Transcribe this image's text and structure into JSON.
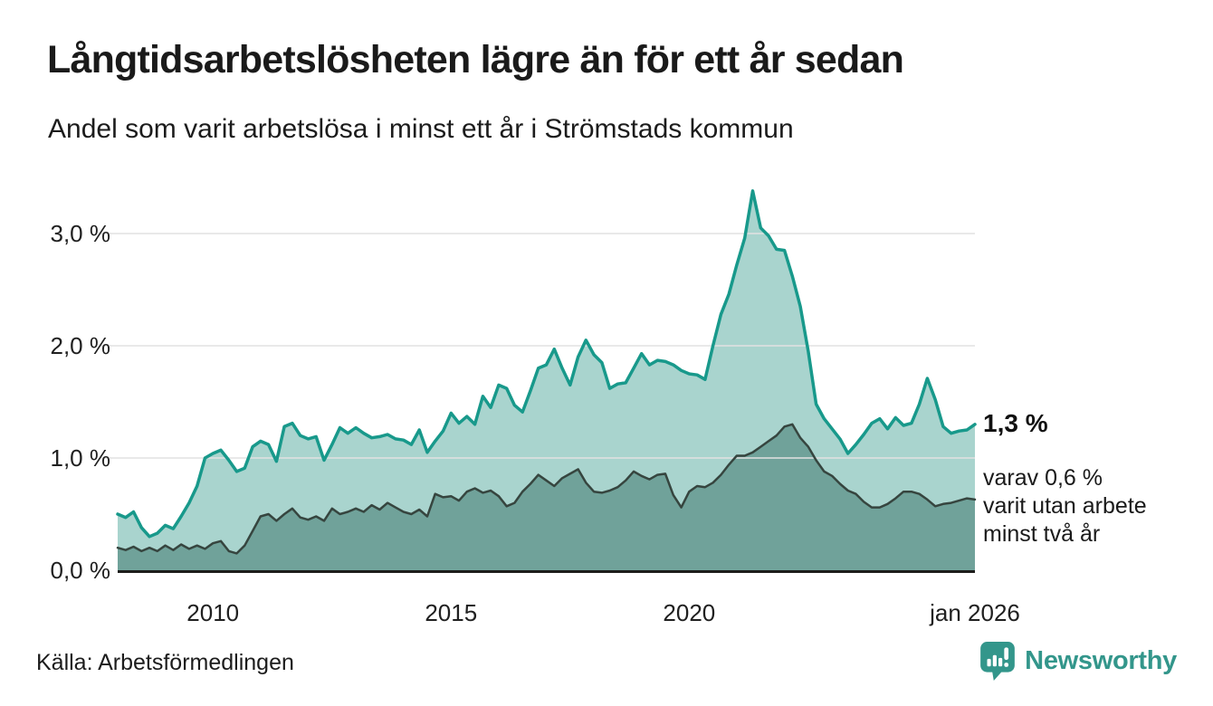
{
  "header": {
    "title": "Långtidsarbetslösheten lägre än för ett år sedan",
    "subtitle": "Andel som varit arbetslösa i minst ett år i Strömstads kommun"
  },
  "chart_data": {
    "type": "area",
    "title": "Långtidsarbetslösheten lägre än för ett år sedan",
    "subtitle": "Andel som varit arbetslösa i minst ett år i Strömstads kommun",
    "unit": "%",
    "x_domain": [
      2008,
      2026
    ],
    "ylim": [
      0,
      3.55
    ],
    "grid": "horizontal",
    "legend": "none",
    "x_ticks": [
      {
        "year": 2010,
        "label": "2010"
      },
      {
        "year": 2015,
        "label": "2015"
      },
      {
        "year": 2020,
        "label": "2020"
      },
      {
        "year": 2026,
        "label": "jan 2026"
      }
    ],
    "y_ticks": [
      {
        "value": 0,
        "label": "0,0 %"
      },
      {
        "value": 1,
        "label": "1,0 %"
      },
      {
        "value": 2,
        "label": "2,0 %"
      },
      {
        "value": 3,
        "label": "3,0 %"
      }
    ],
    "series": [
      {
        "name": "Andel arbetslösa minst ett år",
        "line_color": "#18998b",
        "fill_color": "#a9d4ce",
        "line_width": 3.5,
        "end_value": "1,3 %",
        "values": [
          0.5,
          0.47,
          0.52,
          0.38,
          0.3,
          0.33,
          0.4,
          0.37,
          0.48,
          0.6,
          0.75,
          1.0,
          1.04,
          1.07,
          0.98,
          0.88,
          0.91,
          1.1,
          1.15,
          1.12,
          0.97,
          1.28,
          1.31,
          1.2,
          1.17,
          1.19,
          0.98,
          1.12,
          1.27,
          1.22,
          1.27,
          1.22,
          1.18,
          1.19,
          1.21,
          1.17,
          1.16,
          1.12,
          1.25,
          1.05,
          1.15,
          1.24,
          1.4,
          1.31,
          1.37,
          1.3,
          1.55,
          1.45,
          1.65,
          1.62,
          1.47,
          1.41,
          1.6,
          1.8,
          1.83,
          1.97,
          1.8,
          1.65,
          1.9,
          2.05,
          1.92,
          1.85,
          1.62,
          1.66,
          1.67,
          1.8,
          1.93,
          1.83,
          1.87,
          1.86,
          1.83,
          1.78,
          1.75,
          1.74,
          1.7,
          2.0,
          2.28,
          2.46,
          2.72,
          2.96,
          3.38,
          3.05,
          2.98,
          2.86,
          2.85,
          2.62,
          2.35,
          1.95,
          1.48,
          1.35,
          1.26,
          1.17,
          1.04,
          1.12,
          1.21,
          1.31,
          1.35,
          1.26,
          1.36,
          1.29,
          1.31,
          1.48,
          1.71,
          1.52,
          1.28,
          1.22,
          1.24,
          1.25,
          1.3
        ]
      },
      {
        "name": "Andel arbetslösa minst två år",
        "line_color": "#36453f",
        "fill_color": "#70a29a",
        "line_width": 2.5,
        "end_value": "0,6 %",
        "values": [
          0.2,
          0.18,
          0.21,
          0.17,
          0.2,
          0.17,
          0.22,
          0.18,
          0.23,
          0.19,
          0.22,
          0.19,
          0.24,
          0.26,
          0.17,
          0.15,
          0.22,
          0.35,
          0.48,
          0.5,
          0.44,
          0.5,
          0.55,
          0.47,
          0.45,
          0.48,
          0.44,
          0.55,
          0.5,
          0.52,
          0.55,
          0.52,
          0.58,
          0.54,
          0.6,
          0.56,
          0.52,
          0.5,
          0.54,
          0.48,
          0.68,
          0.65,
          0.66,
          0.62,
          0.7,
          0.73,
          0.69,
          0.71,
          0.66,
          0.57,
          0.6,
          0.7,
          0.77,
          0.85,
          0.8,
          0.75,
          0.82,
          0.86,
          0.9,
          0.78,
          0.7,
          0.69,
          0.71,
          0.74,
          0.8,
          0.88,
          0.84,
          0.81,
          0.85,
          0.86,
          0.67,
          0.56,
          0.7,
          0.75,
          0.74,
          0.78,
          0.85,
          0.94,
          1.02,
          1.02,
          1.05,
          1.1,
          1.15,
          1.2,
          1.28,
          1.3,
          1.18,
          1.1,
          0.98,
          0.88,
          0.84,
          0.77,
          0.71,
          0.68,
          0.61,
          0.56,
          0.56,
          0.59,
          0.64,
          0.7,
          0.7,
          0.68,
          0.63,
          0.57,
          0.59,
          0.6,
          0.62,
          0.64,
          0.63
        ]
      }
    ],
    "annotations": {
      "end_value_label": "1,3 %",
      "secondary_label_lines": [
        "varav 0,6 %",
        "varit utan arbete",
        "minst två år"
      ]
    }
  },
  "footer": {
    "source_label": "Källa: Arbetsförmedlingen",
    "brand_name": "Newsworthy"
  },
  "colors": {
    "grid_line": "#e2e2e2",
    "axis_line": "#1d1d1b",
    "tick_text": "#202020",
    "brand_teal": "#33968b"
  }
}
